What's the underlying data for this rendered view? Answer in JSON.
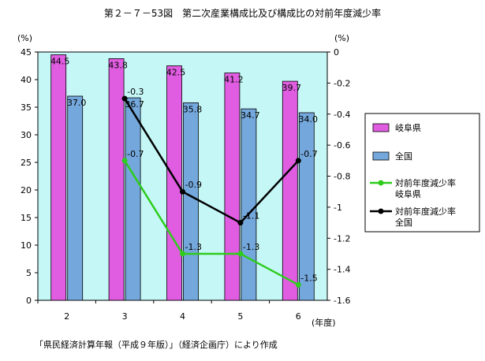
{
  "title": "第２－７－53図　第二次産業構成比及び構成比の対前年度減少率",
  "source": "「県民経済計算年報（平成９年版）」（経済企画庁）により作成",
  "colors": {
    "plot_bg": "#c6f7f7",
    "bar_gifu": "#e05ce0",
    "bar_national": "#74a8dc",
    "line_gifu": "#2ecc1c",
    "line_national": "#000000"
  },
  "chart_data": {
    "type": "bar",
    "categories": [
      "2",
      "3",
      "4",
      "5",
      "6"
    ],
    "x_unit": "(年度)",
    "left_axis": {
      "unit": "(%)",
      "ylim": [
        0,
        45
      ],
      "ticks": [
        "0",
        "5",
        "10",
        "15",
        "20",
        "25",
        "30",
        "35",
        "40",
        "45"
      ]
    },
    "right_axis": {
      "unit": "(%)",
      "ylim": [
        -1.6,
        0
      ],
      "ticks": [
        "0",
        "-0.2",
        "-0.4",
        "-0.6",
        "-0.8",
        "-1",
        "-1.2",
        "-1.4",
        "-1.6"
      ]
    },
    "series": [
      {
        "name": "岐阜県",
        "kind": "bar",
        "axis": "left",
        "values": [
          44.5,
          43.8,
          42.5,
          41.2,
          39.7
        ],
        "labels": [
          "44.5",
          "43.8",
          "42.5",
          "41.2",
          "39.7"
        ]
      },
      {
        "name": "全国",
        "kind": "bar",
        "axis": "left",
        "values": [
          37.0,
          36.7,
          35.8,
          34.7,
          34.0
        ],
        "labels": [
          "37.0",
          "36.7",
          "35.8",
          "34.7",
          "34.0"
        ]
      },
      {
        "name": "対前年度減少率岐阜県",
        "legend_lines": [
          "対前年度減少率",
          "岐阜県"
        ],
        "kind": "line",
        "axis": "right",
        "values": [
          null,
          -0.7,
          -1.3,
          -1.3,
          -1.5
        ],
        "labels": [
          null,
          "-0.7",
          "-1.3",
          "-1.3",
          "-1.5"
        ]
      },
      {
        "name": "対前年度減少率全国",
        "legend_lines": [
          "対前年度減少率",
          "全国"
        ],
        "kind": "line",
        "axis": "right",
        "values": [
          null,
          -0.3,
          -0.9,
          -1.1,
          -0.7
        ],
        "labels": [
          null,
          "-0.3",
          "-0.9",
          "-1.1",
          "-0.7"
        ]
      }
    ],
    "grid": false,
    "legend_position": "right"
  }
}
